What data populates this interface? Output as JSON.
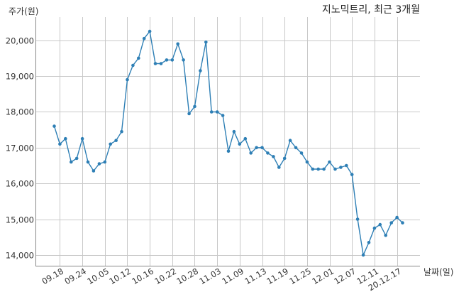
{
  "chart_data": {
    "type": "line",
    "title": "지노믹트리, 최근 3개월",
    "ylabel": "주가(원)",
    "xlabel": "날짜(일)",
    "ylim": [
      13700,
      20650
    ],
    "yticks": [
      14000,
      15000,
      16000,
      17000,
      18000,
      19000,
      20000
    ],
    "ytick_labels": [
      "14,000",
      "15,000",
      "16,000",
      "17,000",
      "18,000",
      "19,000",
      "20,000"
    ],
    "xtick_labels": [
      "09.18",
      "09.24",
      "10.05",
      "10.12",
      "10.16",
      "10.22",
      "10.28",
      "11.03",
      "11.09",
      "11.13",
      "11.19",
      "11.25",
      "12.01",
      "12.07",
      "12.11",
      "20.12.17"
    ],
    "grid": true,
    "line_color": "#2e7fb5",
    "series": [
      {
        "values": [
          17600,
          17100,
          17250,
          16600,
          16700,
          17250,
          16600,
          16350,
          16550,
          16600,
          17100,
          17200,
          17450,
          18900,
          19300,
          19500,
          20050,
          20250,
          19350,
          19350,
          19450,
          19450,
          19900,
          19450,
          17950,
          18150,
          19150,
          19950,
          18000,
          18000,
          17900,
          16900,
          17450,
          17100,
          17250,
          16850,
          17000,
          17000,
          16850,
          16750,
          16450,
          16700,
          17200,
          17000,
          16850,
          16600,
          16400,
          16400,
          16400,
          16600,
          16400,
          16450,
          16500,
          16250,
          15000,
          14000,
          14350,
          14750,
          14850,
          14550,
          14900,
          15050,
          14900
        ]
      }
    ]
  }
}
